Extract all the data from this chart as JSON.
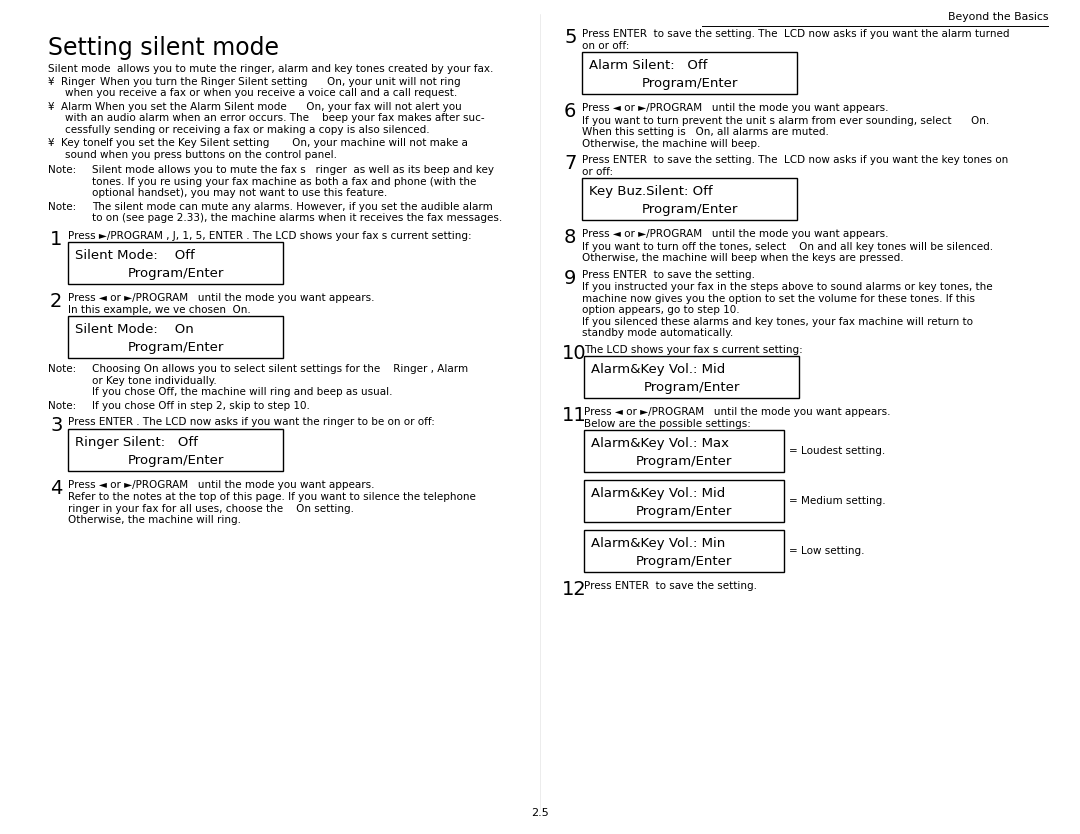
{
  "bg_color": "#ffffff",
  "title": "Setting silent mode",
  "header_right": "Beyond the Basics",
  "footer": "2.5",
  "fig_w": 10.8,
  "fig_h": 8.34,
  "dpi": 100
}
